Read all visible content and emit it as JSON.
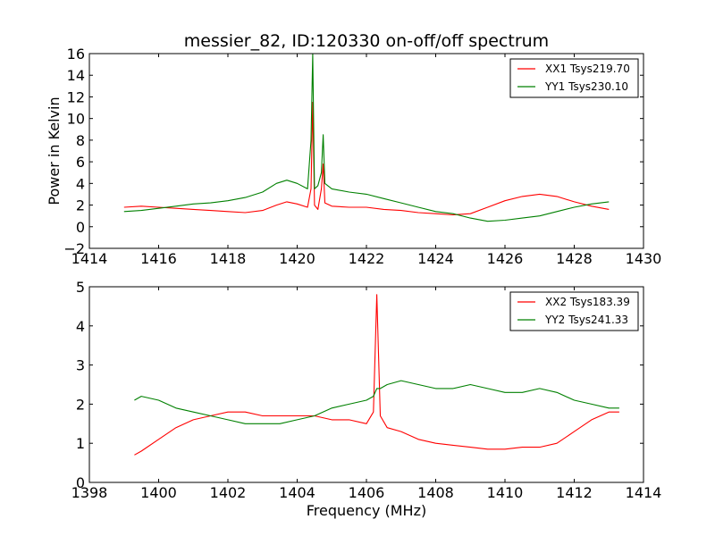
{
  "chart_data": [
    {
      "type": "line",
      "title": "messier_82, ID:120330 on-off/off spectrum",
      "xlabel": "",
      "ylabel": "Power in Kelvin",
      "xlim": [
        1414,
        1430
      ],
      "ylim": [
        -2,
        16
      ],
      "xticks": [
        1414,
        1416,
        1418,
        1420,
        1422,
        1424,
        1426,
        1428,
        1430
      ],
      "yticks": [
        -2,
        0,
        2,
        4,
        6,
        8,
        10,
        12,
        14,
        16
      ],
      "xtick_labels": [
        "1414",
        "1416",
        "1418",
        "1420",
        "1422",
        "1424",
        "1426",
        "1428",
        "1430"
      ],
      "ytick_labels": [
        "−2",
        "0",
        "2",
        "4",
        "6",
        "8",
        "10",
        "12",
        "14",
        "16"
      ],
      "legend_position": "top-right",
      "grid": false,
      "series": [
        {
          "name": "XX1 Tsys219.70",
          "color": "#ff0000",
          "x": [
            1415.0,
            1415.5,
            1416.0,
            1416.5,
            1417.0,
            1417.5,
            1418.0,
            1418.5,
            1419.0,
            1419.4,
            1419.7,
            1420.0,
            1420.3,
            1420.4,
            1420.45,
            1420.5,
            1420.6,
            1420.7,
            1420.75,
            1420.8,
            1421.0,
            1421.5,
            1422.0,
            1422.5,
            1423.0,
            1423.5,
            1424.0,
            1424.5,
            1425.0,
            1425.5,
            1426.0,
            1426.5,
            1427.0,
            1427.5,
            1428.0,
            1428.5,
            1429.0
          ],
          "y": [
            1.8,
            1.9,
            1.8,
            1.7,
            1.6,
            1.5,
            1.4,
            1.3,
            1.5,
            2.0,
            2.3,
            2.1,
            1.8,
            3.5,
            11.5,
            2.0,
            1.6,
            3.5,
            5.8,
            2.2,
            1.9,
            1.8,
            1.8,
            1.6,
            1.5,
            1.3,
            1.2,
            1.1,
            1.2,
            1.8,
            2.4,
            2.8,
            3.0,
            2.8,
            2.3,
            1.9,
            1.6
          ]
        },
        {
          "name": "YY1 Tsys230.10",
          "color": "#008000",
          "x": [
            1415.0,
            1415.5,
            1416.0,
            1416.5,
            1417.0,
            1417.5,
            1418.0,
            1418.5,
            1419.0,
            1419.4,
            1419.7,
            1420.0,
            1420.3,
            1420.4,
            1420.45,
            1420.5,
            1420.6,
            1420.7,
            1420.75,
            1420.8,
            1421.0,
            1421.5,
            1422.0,
            1422.5,
            1423.0,
            1423.5,
            1424.0,
            1424.5,
            1425.0,
            1425.5,
            1426.0,
            1426.5,
            1427.0,
            1427.5,
            1428.0,
            1428.5,
            1429.0
          ],
          "y": [
            1.4,
            1.5,
            1.7,
            1.9,
            2.1,
            2.2,
            2.4,
            2.7,
            3.2,
            4.0,
            4.3,
            4.0,
            3.5,
            8.0,
            16.0,
            3.5,
            3.8,
            5.0,
            8.5,
            4.0,
            3.5,
            3.2,
            3.0,
            2.6,
            2.2,
            1.8,
            1.4,
            1.2,
            0.8,
            0.5,
            0.6,
            0.8,
            1.0,
            1.4,
            1.8,
            2.1,
            2.3
          ]
        }
      ]
    },
    {
      "type": "line",
      "title": "",
      "xlabel": "Frequency (MHz)",
      "ylabel": "",
      "xlim": [
        1398,
        1414
      ],
      "ylim": [
        0,
        5
      ],
      "xticks": [
        1398,
        1400,
        1402,
        1404,
        1406,
        1408,
        1410,
        1412,
        1414
      ],
      "yticks": [
        0,
        1,
        2,
        3,
        4,
        5
      ],
      "xtick_labels": [
        "1398",
        "1400",
        "1402",
        "1404",
        "1406",
        "1408",
        "1410",
        "1412",
        "1414"
      ],
      "ytick_labels": [
        "0",
        "1",
        "2",
        "3",
        "4",
        "5"
      ],
      "legend_position": "top-right",
      "grid": false,
      "series": [
        {
          "name": "XX2 Tsys183.39",
          "color": "#ff0000",
          "x": [
            1399.3,
            1399.5,
            1400.0,
            1400.5,
            1401.0,
            1401.5,
            1402.0,
            1402.5,
            1403.0,
            1403.5,
            1404.0,
            1404.5,
            1405.0,
            1405.5,
            1406.0,
            1406.2,
            1406.3,
            1406.4,
            1406.6,
            1407.0,
            1407.5,
            1408.0,
            1408.5,
            1409.0,
            1409.5,
            1410.0,
            1410.5,
            1411.0,
            1411.5,
            1412.0,
            1412.5,
            1413.0,
            1413.3
          ],
          "y": [
            0.7,
            0.8,
            1.1,
            1.4,
            1.6,
            1.7,
            1.8,
            1.8,
            1.7,
            1.7,
            1.7,
            1.7,
            1.6,
            1.6,
            1.5,
            1.8,
            4.8,
            1.7,
            1.4,
            1.3,
            1.1,
            1.0,
            0.95,
            0.9,
            0.85,
            0.85,
            0.9,
            0.9,
            1.0,
            1.3,
            1.6,
            1.8,
            1.8
          ]
        },
        {
          "name": "YY2 Tsys241.33",
          "color": "#008000",
          "x": [
            1399.3,
            1399.5,
            1400.0,
            1400.5,
            1401.0,
            1401.5,
            1402.0,
            1402.5,
            1403.0,
            1403.5,
            1404.0,
            1404.5,
            1405.0,
            1405.5,
            1406.0,
            1406.2,
            1406.3,
            1406.4,
            1406.6,
            1407.0,
            1407.5,
            1408.0,
            1408.5,
            1409.0,
            1409.5,
            1410.0,
            1410.5,
            1411.0,
            1411.5,
            1412.0,
            1412.5,
            1413.0,
            1413.3
          ],
          "y": [
            2.1,
            2.2,
            2.1,
            1.9,
            1.8,
            1.7,
            1.6,
            1.5,
            1.5,
            1.5,
            1.6,
            1.7,
            1.9,
            2.0,
            2.1,
            2.2,
            2.4,
            2.4,
            2.5,
            2.6,
            2.5,
            2.4,
            2.4,
            2.5,
            2.4,
            2.3,
            2.3,
            2.4,
            2.3,
            2.1,
            2.0,
            1.9,
            1.9
          ]
        }
      ]
    }
  ]
}
